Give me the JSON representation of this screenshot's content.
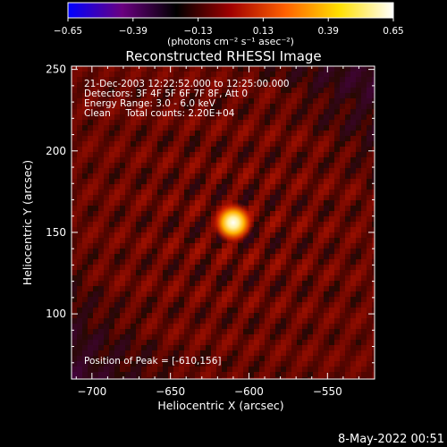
{
  "chart_data": {
    "type": "heatmap",
    "title": "Reconstructed RHESSI Image",
    "xlabel": "Heliocentric X (arcsec)",
    "ylabel": "Heliocentric Y (arcsec)",
    "xlim": [
      -713,
      -520
    ],
    "ylim": [
      60,
      252
    ],
    "x_ticks": [
      -700,
      -650,
      -600,
      -550
    ],
    "x_tick_labels": [
      "−700",
      "−650",
      "−600",
      "−550"
    ],
    "y_ticks": [
      100,
      150,
      200,
      250
    ],
    "y_tick_labels": [
      "100",
      "150",
      "200",
      "250"
    ],
    "colorbar": {
      "range": [
        -0.65,
        0.65
      ],
      "ticks": [
        -0.65,
        -0.39,
        -0.13,
        0.13,
        0.39,
        0.65
      ],
      "tick_labels": [
        "−0.65",
        "−0.39",
        "−0.13",
        "0.13",
        "0.39",
        "0.65"
      ],
      "units_line": "(photons cm⁻² s⁻¹ asec⁻²)",
      "colors": [
        "#0000ff",
        "#6a0080",
        "#000000",
        "#a00000",
        "#ff6000",
        "#ffe000",
        "#ffffff"
      ]
    },
    "annotations": [
      "21-Dec-2003 12:22:52.000 to 12:25:00.000",
      "Detectors: 3F 4F 5F 6F 7F 8F, Att 0",
      "Energy Range: 3.0 - 6.0 keV",
      "Clean     Total counts: 2.20E+04"
    ],
    "peak": {
      "x": -610,
      "y": 156,
      "label": "Position of Peak = [-610,156]"
    },
    "footer_date": "8-May-2022 00:51"
  }
}
